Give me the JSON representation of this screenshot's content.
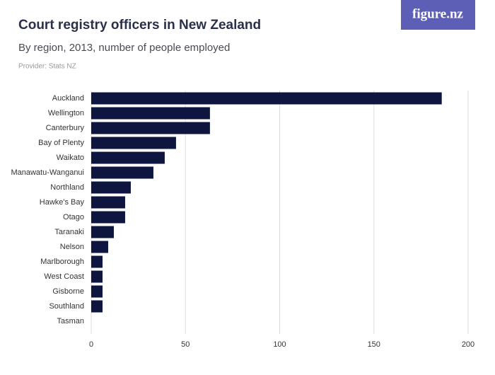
{
  "logo": "figure.nz",
  "chart_data": {
    "type": "bar",
    "orientation": "horizontal",
    "title": "Court registry officers in New Zealand",
    "subtitle": "By region, 2013, number of people employed",
    "provider": "Provider: Stats NZ",
    "categories": [
      "Auckland",
      "Wellington",
      "Canterbury",
      "Bay of Plenty",
      "Waikato",
      "Manawatu-Wanganui",
      "Northland",
      "Hawke's Bay",
      "Otago",
      "Taranaki",
      "Nelson",
      "Marlborough",
      "West Coast",
      "Gisborne",
      "Southland",
      "Tasman"
    ],
    "values": [
      186,
      63,
      63,
      45,
      39,
      33,
      21,
      18,
      18,
      12,
      9,
      6,
      6,
      6,
      6,
      0
    ],
    "color": "#0e1640",
    "xlim": [
      0,
      200
    ],
    "xticks": [
      0,
      50,
      100,
      150,
      200
    ],
    "grid": true
  }
}
